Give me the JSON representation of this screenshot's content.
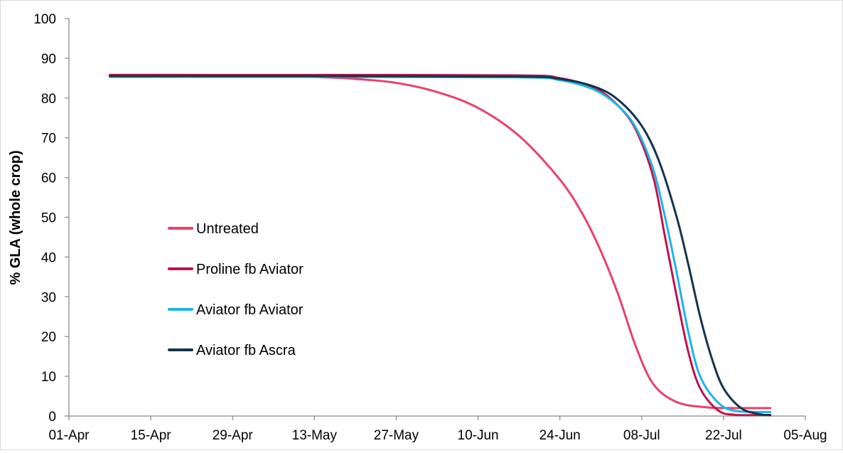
{
  "chart_data": {
    "type": "line",
    "title": "",
    "xlabel": "",
    "ylabel": "% GLA (whole crop)",
    "x_ticks": [
      "01-Apr",
      "15-Apr",
      "29-Apr",
      "13-May",
      "27-May",
      "10-Jun",
      "24-Jun",
      "08-Jul",
      "22-Jul",
      "05-Aug"
    ],
    "y_ticks": [
      0,
      10,
      20,
      30,
      40,
      50,
      60,
      70,
      80,
      90,
      100
    ],
    "ylim": [
      0,
      100
    ],
    "xlim": [
      "2020-04-01",
      "2020-08-05"
    ],
    "grid": false,
    "legend_position": "center-left",
    "series": [
      {
        "name": "Untreated",
        "color": "#e8416b",
        "points": [
          [
            "2020-04-08",
            85.8
          ],
          [
            "2020-04-22",
            85.8
          ],
          [
            "2020-05-06",
            85.6
          ],
          [
            "2020-05-13",
            85.3
          ],
          [
            "2020-05-20",
            84.8
          ],
          [
            "2020-05-27",
            83.8
          ],
          [
            "2020-06-03",
            81.5
          ],
          [
            "2020-06-10",
            77.5
          ],
          [
            "2020-06-17",
            70.5
          ],
          [
            "2020-06-24",
            59.5
          ],
          [
            "2020-06-28",
            50.5
          ],
          [
            "2020-07-01",
            41.5
          ],
          [
            "2020-07-04",
            30.5
          ],
          [
            "2020-07-07",
            17.5
          ],
          [
            "2020-07-10",
            8.0
          ],
          [
            "2020-07-14",
            3.5
          ],
          [
            "2020-07-19",
            2.2
          ],
          [
            "2020-07-24",
            2.0
          ],
          [
            "2020-07-30",
            2.0
          ]
        ]
      },
      {
        "name": "Proline fb Aviator",
        "color": "#c0134b",
        "points": [
          [
            "2020-04-08",
            85.8
          ],
          [
            "2020-05-13",
            85.8
          ],
          [
            "2020-06-17",
            85.7
          ],
          [
            "2020-06-24",
            85.0
          ],
          [
            "2020-06-30",
            82.5
          ],
          [
            "2020-07-04",
            78.0
          ],
          [
            "2020-07-07",
            72.0
          ],
          [
            "2020-07-10",
            60.0
          ],
          [
            "2020-07-12",
            45.0
          ],
          [
            "2020-07-14",
            30.0
          ],
          [
            "2020-07-16",
            16.0
          ],
          [
            "2020-07-18",
            7.0
          ],
          [
            "2020-07-21",
            1.5
          ],
          [
            "2020-07-24",
            0.3
          ],
          [
            "2020-07-30",
            0.3
          ]
        ]
      },
      {
        "name": "Aviator fb Aviator",
        "color": "#1eb4e6",
        "points": [
          [
            "2020-04-08",
            85.3
          ],
          [
            "2020-05-13",
            85.3
          ],
          [
            "2020-06-17",
            85.2
          ],
          [
            "2020-06-24",
            84.5
          ],
          [
            "2020-06-30",
            82.0
          ],
          [
            "2020-07-04",
            78.0
          ],
          [
            "2020-07-07",
            72.5
          ],
          [
            "2020-07-10",
            62.0
          ],
          [
            "2020-07-12",
            50.0
          ],
          [
            "2020-07-14",
            36.0
          ],
          [
            "2020-07-16",
            21.0
          ],
          [
            "2020-07-18",
            10.0
          ],
          [
            "2020-07-21",
            3.5
          ],
          [
            "2020-07-24",
            1.3
          ],
          [
            "2020-07-30",
            1.0
          ]
        ]
      },
      {
        "name": "Aviator fb Ascra",
        "color": "#14344c",
        "points": [
          [
            "2020-04-08",
            85.5
          ],
          [
            "2020-05-13",
            85.5
          ],
          [
            "2020-06-17",
            85.4
          ],
          [
            "2020-06-24",
            84.8
          ],
          [
            "2020-06-30",
            82.8
          ],
          [
            "2020-07-04",
            79.5
          ],
          [
            "2020-07-08",
            73.0
          ],
          [
            "2020-07-11",
            64.0
          ],
          [
            "2020-07-14",
            50.0
          ],
          [
            "2020-07-16",
            38.0
          ],
          [
            "2020-07-18",
            25.0
          ],
          [
            "2020-07-20",
            14.5
          ],
          [
            "2020-07-22",
            7.0
          ],
          [
            "2020-07-25",
            2.0
          ],
          [
            "2020-07-28",
            0.5
          ],
          [
            "2020-07-30",
            0.2
          ]
        ]
      }
    ]
  }
}
